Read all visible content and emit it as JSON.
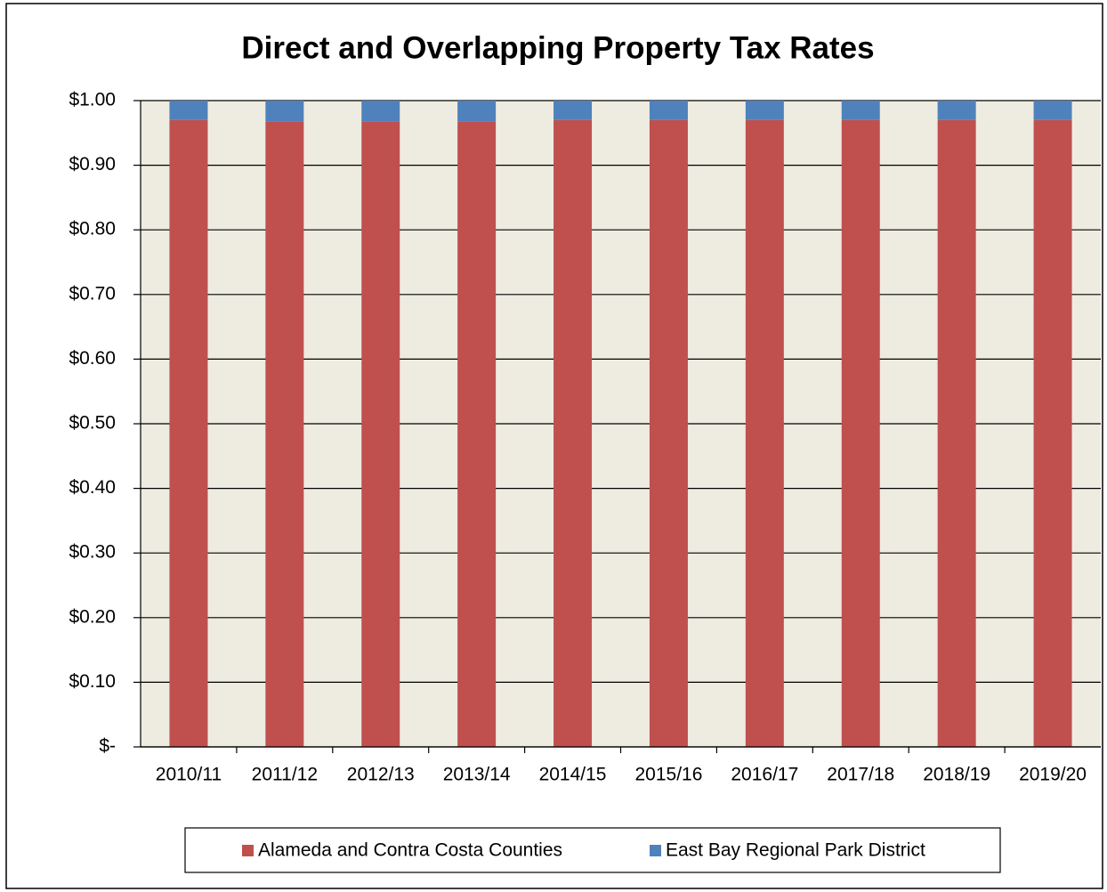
{
  "chart_data": {
    "type": "stacked_bar",
    "title": "Direct and Overlapping Property Tax Rates",
    "categories": [
      "2010/11",
      "2011/12",
      "2012/13",
      "2013/14",
      "2014/15",
      "2015/16",
      "2016/17",
      "2017/18",
      "2018/19",
      "2019/20"
    ],
    "series": [
      {
        "name": "Alameda and Contra Costa Counties",
        "color": "#c0504d",
        "values": [
          0.97,
          0.968,
          0.968,
          0.968,
          0.97,
          0.97,
          0.97,
          0.97,
          0.97,
          0.97
        ]
      },
      {
        "name": "East Bay Regional Park District",
        "color": "#4f81bd",
        "values": [
          0.03,
          0.032,
          0.032,
          0.032,
          0.03,
          0.03,
          0.03,
          0.03,
          0.03,
          0.03
        ]
      }
    ],
    "ylim": [
      0,
      1
    ],
    "yticks": [
      {
        "value": 0,
        "label": "$-"
      },
      {
        "value": 0.1,
        "label": "$0.10"
      },
      {
        "value": 0.2,
        "label": "$0.20"
      },
      {
        "value": 0.3,
        "label": "$0.30"
      },
      {
        "value": 0.4,
        "label": "$0.40"
      },
      {
        "value": 0.5,
        "label": "$0.50"
      },
      {
        "value": 0.6,
        "label": "$0.60"
      },
      {
        "value": 0.7,
        "label": "$0.70"
      },
      {
        "value": 0.8,
        "label": "$0.80"
      },
      {
        "value": 0.9,
        "label": "$0.90"
      },
      {
        "value": 1,
        "label": "$1.00"
      }
    ],
    "grid": true,
    "legend": "bottom",
    "plot_background": "#eeece1"
  }
}
